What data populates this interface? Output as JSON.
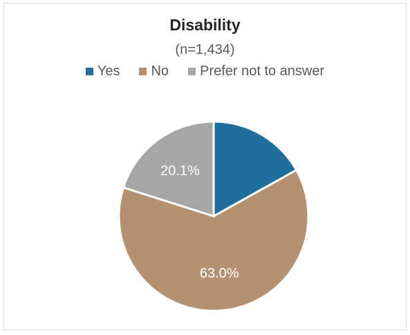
{
  "chart_data": {
    "type": "pie",
    "title": "Disability",
    "subtitle": "(n=1,434)",
    "legend_position": "top",
    "categories": [
      "Yes",
      "No",
      "Prefer not to answer"
    ],
    "values": [
      16.9,
      63.0,
      20.1
    ],
    "data_labels": [
      "",
      "63.0%",
      "20.1%"
    ],
    "colors": [
      "#1f6e9c",
      "#b49271",
      "#a6a6a6"
    ]
  }
}
